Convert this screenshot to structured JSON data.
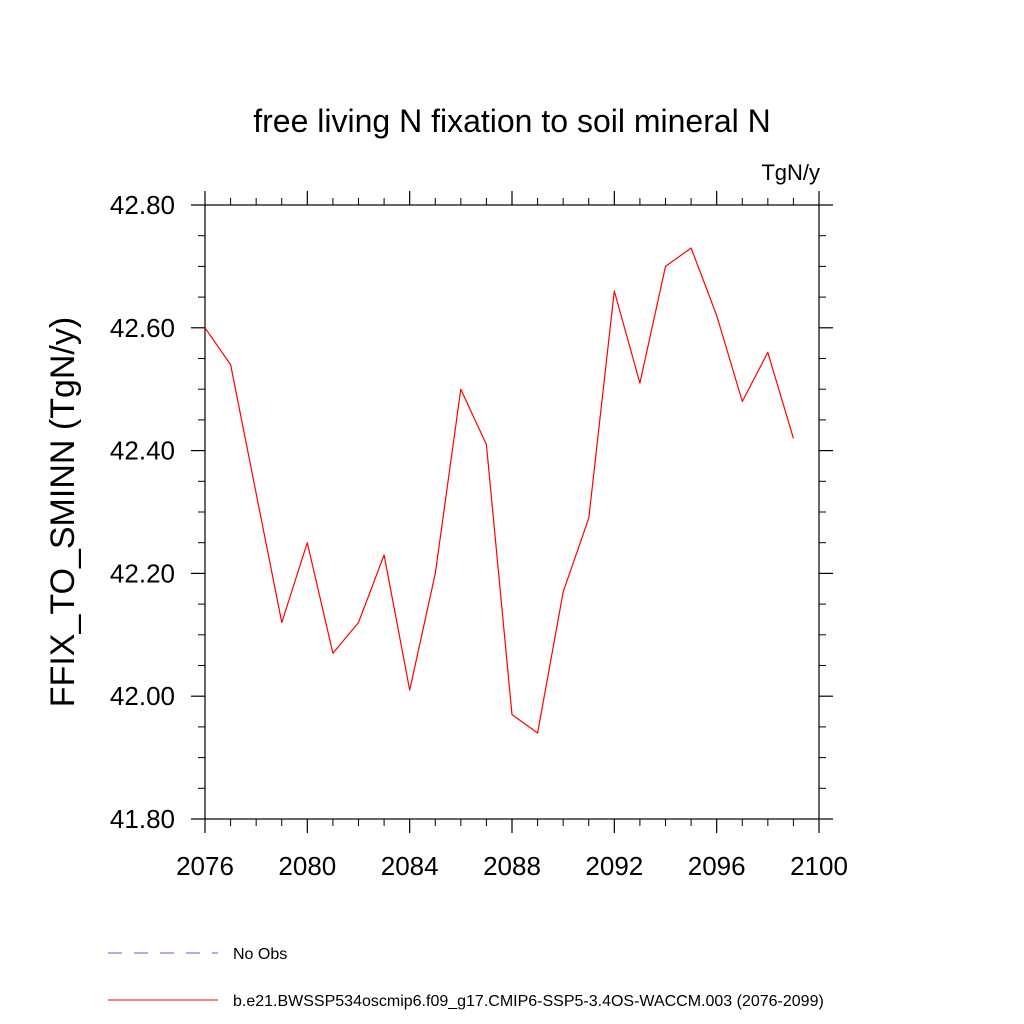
{
  "chart_data": {
    "type": "line",
    "title": "free living N fixation to soil mineral N",
    "units": "TgN/y",
    "xlabel": "",
    "ylabel": "FFIX_TO_SMINN  (TgN/y)",
    "xlim": [
      2076,
      2100
    ],
    "ylim": [
      41.8,
      42.8
    ],
    "x_ticks": [
      2076,
      2080,
      2084,
      2088,
      2092,
      2096,
      2100
    ],
    "y_ticks": [
      "42.80",
      "42.60",
      "42.40",
      "42.20",
      "42.00",
      "41.80"
    ],
    "grid": false,
    "series": [
      {
        "name": "b.e21.BWSSP534oscmip6.f09_g17.CMIP6-SSP5-3.4OS-WACCM.003 (2076-2099)",
        "color": "#ff0000",
        "x": [
          2076,
          2077,
          2078,
          2079,
          2080,
          2081,
          2082,
          2083,
          2084,
          2085,
          2086,
          2087,
          2088,
          2089,
          2090,
          2091,
          2092,
          2093,
          2094,
          2095,
          2096,
          2097,
          2098,
          2099
        ],
        "y": [
          42.6,
          42.54,
          42.33,
          42.12,
          42.25,
          42.07,
          42.12,
          42.23,
          42.01,
          42.2,
          42.5,
          42.41,
          41.97,
          41.94,
          42.17,
          42.29,
          42.66,
          42.51,
          42.7,
          42.73,
          42.62,
          42.48,
          42.56,
          42.42
        ]
      }
    ],
    "legend": [
      {
        "label": "No Obs",
        "style": "dashed",
        "color": "#6a5acd"
      },
      {
        "label": "b.e21.BWSSP534oscmip6.f09_g17.CMIP6-SSP5-3.4OS-WACCM.003 (2076-2099)",
        "style": "solid",
        "color": "#ff0000"
      }
    ]
  }
}
